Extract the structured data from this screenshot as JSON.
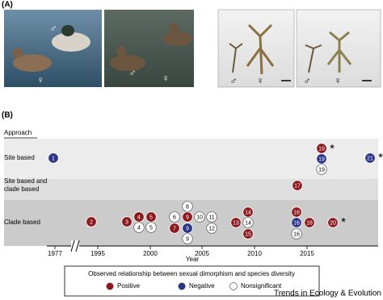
{
  "panel_a": {
    "label": "(A)",
    "photo_symbols": [
      [
        "♂",
        "♀"
      ],
      [
        "♀",
        "♂"
      ],
      [
        "♂",
        "♀"
      ],
      [
        "♂",
        "♀"
      ]
    ]
  },
  "panel_b": {
    "label": "(B)",
    "approach_title": "Approach",
    "rows": [
      [
        "Site based"
      ],
      [
        "Site based and",
        "clade based"
      ],
      [
        "Clade based"
      ]
    ],
    "x_ticks": [
      "1977",
      "1995",
      "2000",
      "2005",
      "2010",
      "2015"
    ],
    "x_label": "Year",
    "points": [
      {
        "label": "1",
        "color": "#2b3588"
      },
      {
        "label": "19",
        "color": "#8b1a1e"
      },
      {
        "label": "19",
        "color": "#2b3588"
      },
      {
        "label": "19",
        "color": "#ffffff"
      },
      {
        "label": "21",
        "color": "#2b3588"
      },
      {
        "label": "17",
        "color": "#8b1a1e"
      },
      {
        "label": "2",
        "color": "#8b1a1e"
      },
      {
        "label": "3",
        "color": "#8b1a1e"
      },
      {
        "label": "4",
        "color": "#8b1a1e"
      },
      {
        "label": "4",
        "color": "#ffffff"
      },
      {
        "label": "5",
        "color": "#8b1a1e"
      },
      {
        "label": "5",
        "color": "#ffffff"
      },
      {
        "label": "8",
        "color": "#ffffff"
      },
      {
        "label": "6",
        "color": "#ffffff"
      },
      {
        "label": "9",
        "color": "#8b1a1e"
      },
      {
        "label": "10",
        "color": "#ffffff"
      },
      {
        "label": "11",
        "color": "#ffffff"
      },
      {
        "label": "7",
        "color": "#8b1a1e"
      },
      {
        "label": "9",
        "color": "#2b3588"
      },
      {
        "label": "12",
        "color": "#ffffff"
      },
      {
        "label": "9",
        "color": "#ffffff"
      },
      {
        "label": "14",
        "color": "#8b1a1e"
      },
      {
        "label": "13",
        "color": "#8b1a1e"
      },
      {
        "label": "14",
        "color": "#ffffff"
      },
      {
        "label": "15",
        "color": "#8b1a1e"
      },
      {
        "label": "16",
        "color": "#8b1a1e"
      },
      {
        "label": "16",
        "color": "#2b3588"
      },
      {
        "label": "18",
        "color": "#8b1a1e"
      },
      {
        "label": "16",
        "color": "#ffffff"
      },
      {
        "label": "20",
        "color": "#8b1a1e"
      }
    ],
    "asterisks": [
      "*",
      "*",
      "*"
    ],
    "legend": {
      "title": "Observed relationship between sexual dimorphism and species diversity",
      "items": [
        {
          "label": "Positive",
          "color": "#8b1a1e"
        },
        {
          "label": "Negative",
          "color": "#2b3588"
        },
        {
          "label": "Nonsignificant",
          "color": "#ffffff"
        }
      ]
    }
  },
  "footer": "Trends in Ecology & Evolution"
}
